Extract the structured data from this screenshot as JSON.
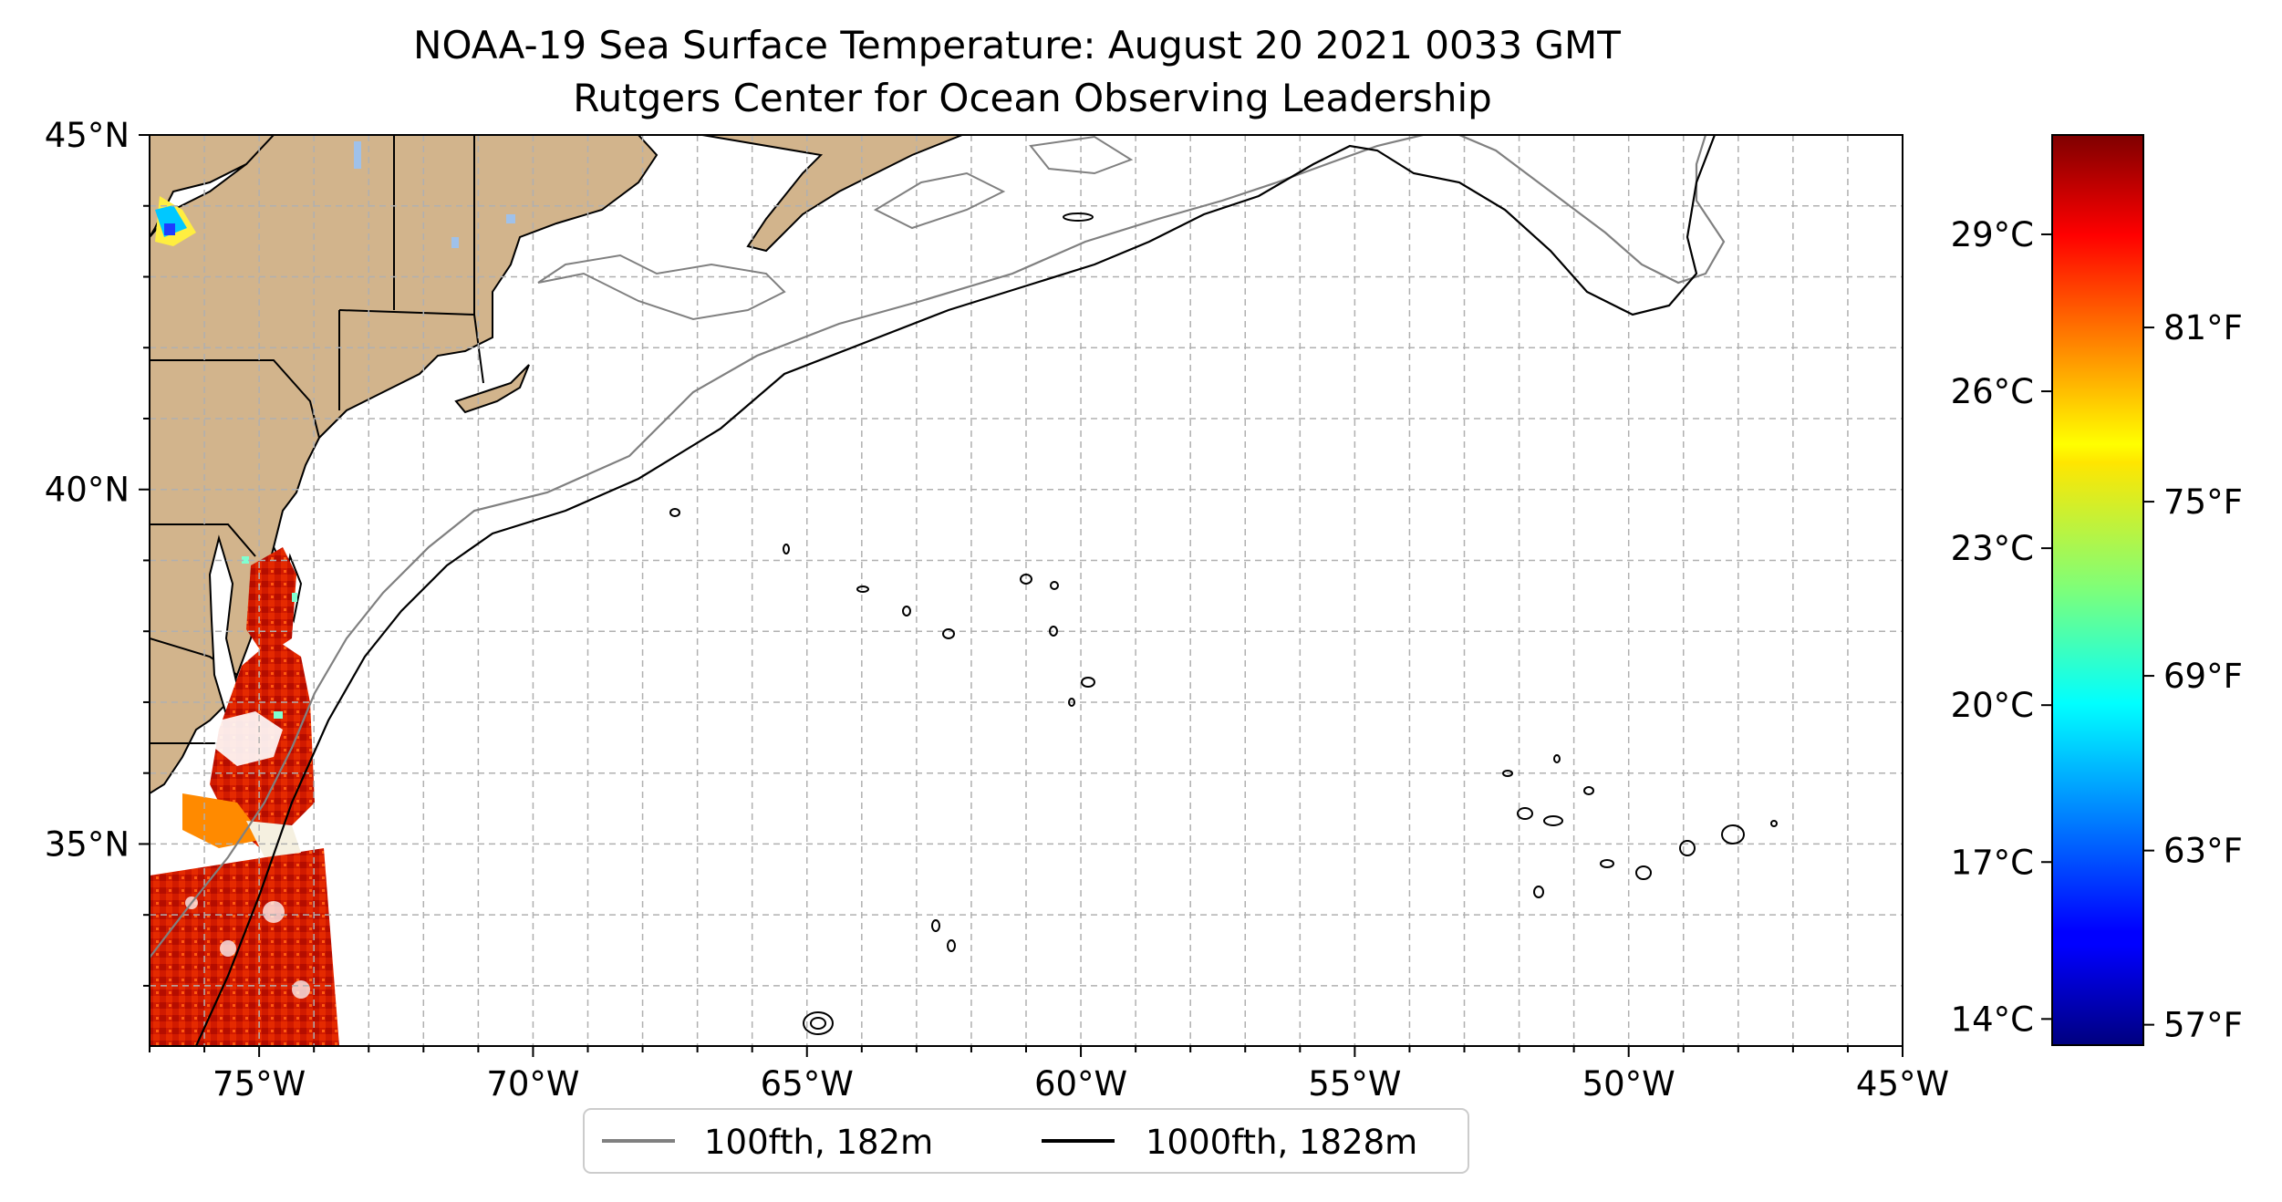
{
  "title": {
    "line1": "NOAA-19 Sea Surface Temperature: August 20 2021 0033 GMT",
    "line2": "Rutgers Center for Ocean Observing Leadership"
  },
  "map": {
    "lat_ticks": [
      {
        "value": 45,
        "label": "45°N"
      },
      {
        "value": 40,
        "label": "40°N"
      },
      {
        "value": 35,
        "label": "35°N"
      }
    ],
    "lon_ticks": [
      {
        "value": -75,
        "label": "75°W"
      },
      {
        "value": -70,
        "label": "70°W"
      },
      {
        "value": -65,
        "label": "65°W"
      },
      {
        "value": -60,
        "label": "60°W"
      },
      {
        "value": -55,
        "label": "55°W"
      },
      {
        "value": -50,
        "label": "50°W"
      },
      {
        "value": -45,
        "label": "45°W"
      }
    ],
    "extent": {
      "lon_min": -77,
      "lon_max": -45,
      "lat_min": 32.15,
      "lat_max": 45
    },
    "land_color": "#d2b48c",
    "water_color": "#9fc1ea"
  },
  "legend": {
    "items": [
      {
        "label": "100fth, 182m",
        "color": "#808080"
      },
      {
        "label": "1000fth, 1828m",
        "color": "#000000"
      }
    ]
  },
  "colorbar": {
    "colormap": "jet",
    "range_c": [
      13.5,
      30.9
    ],
    "celsius_ticks": [
      {
        "value": 29,
        "label": "29°C"
      },
      {
        "value": 26,
        "label": "26°C"
      },
      {
        "value": 23,
        "label": "23°C"
      },
      {
        "value": 20,
        "label": "20°C"
      },
      {
        "value": 17,
        "label": "17°C"
      },
      {
        "value": 14,
        "label": "14°C"
      }
    ],
    "fahrenheit_ticks": [
      {
        "value_c": 27.22,
        "label": "81°F"
      },
      {
        "value_c": 23.89,
        "label": "75°F"
      },
      {
        "value_c": 20.56,
        "label": "69°F"
      },
      {
        "value_c": 17.22,
        "label": "63°F"
      },
      {
        "value_c": 13.89,
        "label": "57°F"
      }
    ]
  }
}
